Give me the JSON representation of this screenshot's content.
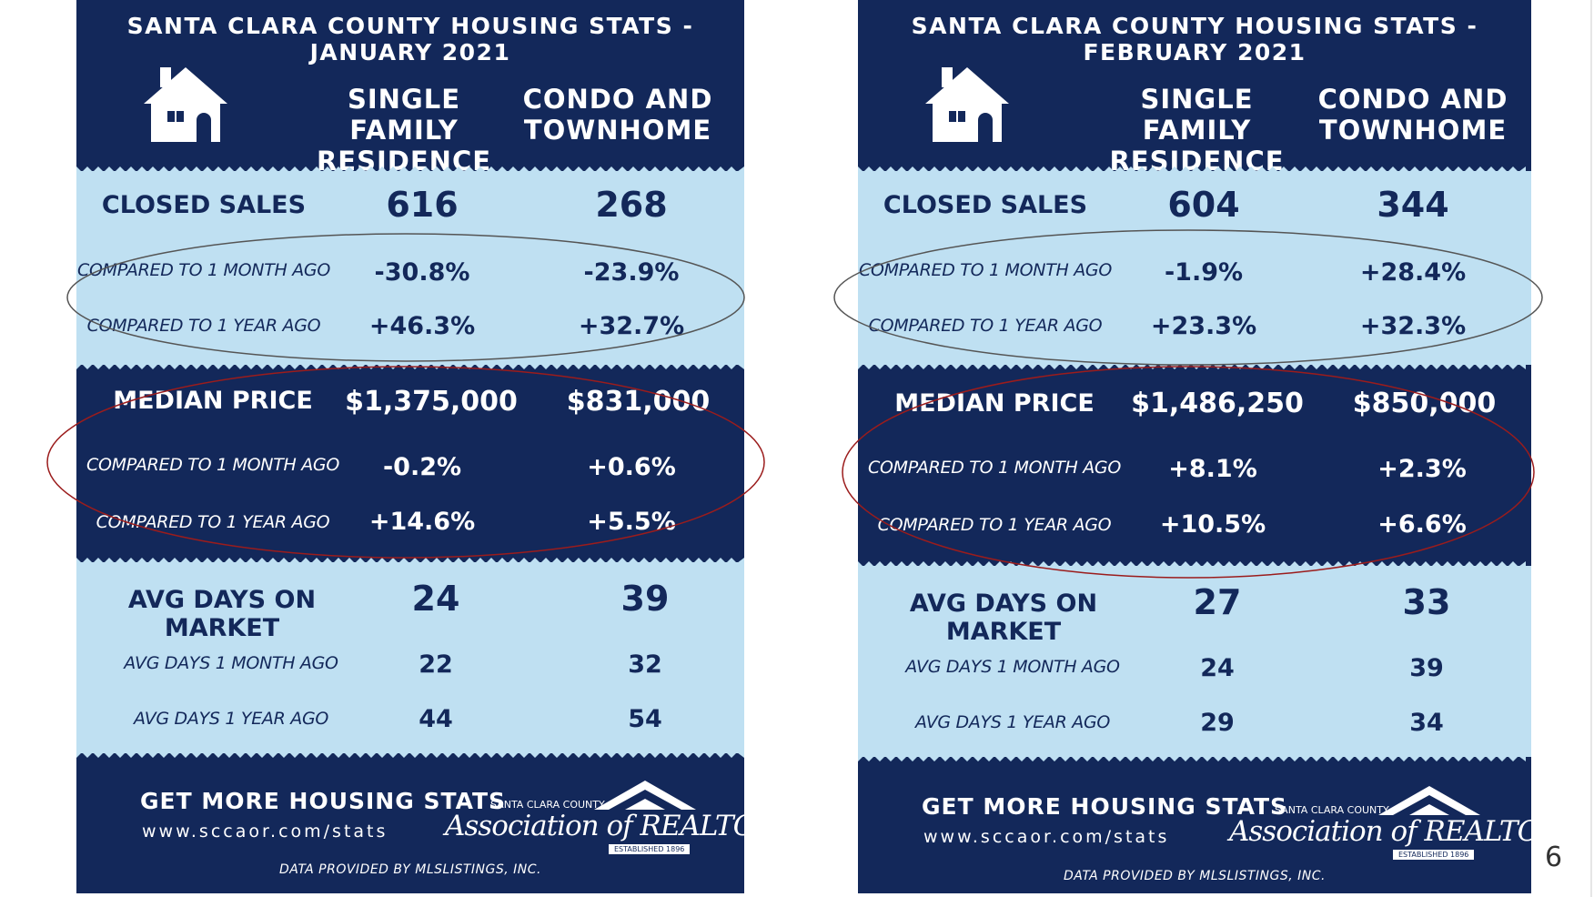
{
  "jan": {
    "title": "SANTA CLARA COUNTY HOUSING STATS - JANUARY 2021",
    "col1": "SINGLE FAMILY\nRESIDENCE",
    "col2": "CONDO AND\nTOWNHOME",
    "closed_sales": {
      "label": "CLOSED SALES",
      "sfr": "616",
      "condo": "268",
      "month_label": "COMPARED TO 1 MONTH AGO",
      "month_sfr": "-30.8%",
      "month_condo": "-23.9%",
      "year_label": "COMPARED TO 1 YEAR AGO",
      "year_sfr": "+46.3%",
      "year_condo": "+32.7%"
    },
    "median_price": {
      "label": "MEDIAN PRICE",
      "sfr": "$1,375,000",
      "condo": "$831,000",
      "month_label": "COMPARED TO 1 MONTH AGO",
      "month_sfr": "-0.2%",
      "month_condo": "+0.6%",
      "year_label": "COMPARED TO 1 YEAR AGO",
      "year_sfr": "+14.6%",
      "year_condo": "+5.5%"
    },
    "avg_days": {
      "label": "AVG DAYS ON MARKET",
      "sfr": "24",
      "condo": "39",
      "month_label": "AVG DAYS 1 MONTH AGO",
      "month_sfr": "22",
      "month_condo": "32",
      "year_label": "AVG DAYS 1 YEAR AGO",
      "year_sfr": "44",
      "year_condo": "54"
    },
    "footer": {
      "heading": "GET MORE HOUSING STATS",
      "url": "www.sccaor.com/stats",
      "logo_small": "SANTA CLARA COUNTY",
      "logo_main": "Association of REALTORS",
      "logo_est": "ESTABLISHED 1896",
      "data_note": "DATA PROVIDED BY MLSLISTINGS, INC."
    }
  },
  "feb": {
    "title": "SANTA CLARA COUNTY HOUSING STATS - FEBRUARY 2021",
    "col1": "SINGLE FAMILY\nRESIDENCE",
    "col2": "CONDO AND\nTOWNHOME",
    "closed_sales": {
      "label": "CLOSED SALES",
      "sfr": "604",
      "condo": "344",
      "month_label": "COMPARED TO 1 MONTH AGO",
      "month_sfr": "-1.9%",
      "month_condo": "+28.4%",
      "year_label": "COMPARED TO 1 YEAR AGO",
      "year_sfr": "+23.3%",
      "year_condo": "+32.3%"
    },
    "median_price": {
      "label": "MEDIAN PRICE",
      "sfr": "$1,486,250",
      "condo": "$850,000",
      "month_label": "COMPARED TO 1 MONTH AGO",
      "month_sfr": "+8.1%",
      "month_condo": "+2.3%",
      "year_label": "COMPARED TO 1 YEAR AGO",
      "year_sfr": "+10.5%",
      "year_condo": "+6.6%"
    },
    "avg_days": {
      "label": "AVG DAYS ON MARKET",
      "sfr": "27",
      "condo": "33",
      "month_label": "AVG DAYS 1 MONTH AGO",
      "month_sfr": "24",
      "month_condo": "39",
      "year_label": "AVG DAYS 1 YEAR AGO",
      "year_sfr": "29",
      "year_condo": "34"
    },
    "footer": {
      "heading": "GET MORE HOUSING STATS",
      "url": "www.sccaor.com/stats",
      "logo_small": "SANTA CLARA COUNTY",
      "logo_main": "Association of REALTORS",
      "logo_est": "ESTABLISHED 1896",
      "data_note": "DATA PROVIDED BY MLSLISTINGS, INC."
    }
  },
  "page_number": "6",
  "colors": {
    "navy": "#13285a",
    "light_blue": "#bfe0f2",
    "annotation_gray": "#555555",
    "annotation_red": "#9b1c1c"
  }
}
